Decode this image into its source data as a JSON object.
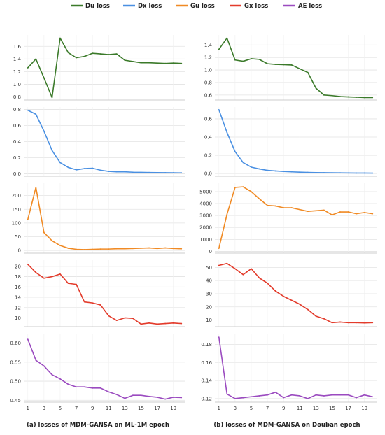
{
  "legend": [
    {
      "name": "Du loss",
      "color": "#3b7a2a"
    },
    {
      "name": "Dx loss",
      "color": "#4a90e2"
    },
    {
      "name": "Gu loss",
      "color": "#f08a24"
    },
    {
      "name": "Gx loss",
      "color": "#e33b2b"
    },
    {
      "name": "AE loss",
      "color": "#9b4bc0"
    }
  ],
  "captions": {
    "left": "(a) losses of MDM-GANSA on ML-1M epoch",
    "right": "(b) losses of MDM-GANSA on Douban epoch"
  },
  "chart_data": [
    {
      "type": "line",
      "dataset": "ML-1M",
      "series_name": "Du loss",
      "color": "#3b7a2a",
      "x": [
        1,
        2,
        3,
        4,
        5,
        6,
        7,
        8,
        9,
        10,
        11,
        12,
        13,
        14,
        15,
        16,
        17,
        18,
        19,
        20
      ],
      "y": [
        1.26,
        1.4,
        1.1,
        0.79,
        1.73,
        1.5,
        1.42,
        1.44,
        1.49,
        1.48,
        1.47,
        1.48,
        1.38,
        1.36,
        1.34,
        1.34,
        1.335,
        1.33,
        1.335,
        1.33
      ],
      "yticks": [
        0.8,
        1.0,
        1.2,
        1.4,
        1.6
      ],
      "ylim": [
        0.75,
        1.78
      ],
      "xlim": [
        0.5,
        20.5
      ],
      "grid": true
    },
    {
      "type": "line",
      "dataset": "ML-1M",
      "series_name": "Dx loss",
      "color": "#4a90e2",
      "x": [
        1,
        2,
        3,
        4,
        5,
        6,
        7,
        8,
        9,
        10,
        11,
        12,
        13,
        14,
        15,
        16,
        17,
        18,
        19,
        20
      ],
      "y": [
        0.79,
        0.74,
        0.53,
        0.29,
        0.14,
        0.08,
        0.05,
        0.065,
        0.07,
        0.045,
        0.03,
        0.025,
        0.025,
        0.02,
        0.018,
        0.016,
        0.015,
        0.014,
        0.013,
        0.012
      ],
      "yticks": [
        0.0,
        0.2,
        0.4,
        0.6,
        0.8
      ],
      "ylim": [
        -0.03,
        0.83
      ],
      "xlim": [
        0.5,
        20.5
      ],
      "grid": true
    },
    {
      "type": "line",
      "dataset": "ML-1M",
      "series_name": "Gu loss",
      "color": "#f08a24",
      "x": [
        1,
        2,
        3,
        4,
        5,
        6,
        7,
        8,
        9,
        10,
        11,
        12,
        13,
        14,
        15,
        16,
        17,
        18,
        19,
        20
      ],
      "y": [
        113,
        230,
        65,
        35,
        18,
        8,
        4,
        3,
        4,
        5,
        5,
        6,
        6,
        7,
        8,
        9,
        7,
        9,
        7,
        6
      ],
      "yticks": [
        0,
        50,
        100,
        150,
        200
      ],
      "ylim": [
        -10,
        245
      ],
      "xlim": [
        0.5,
        20.5
      ],
      "grid": true
    },
    {
      "type": "line",
      "dataset": "ML-1M",
      "series_name": "Gx loss",
      "color": "#e33b2b",
      "x": [
        1,
        2,
        3,
        4,
        5,
        6,
        7,
        8,
        9,
        10,
        11,
        12,
        13,
        14,
        15,
        16,
        17,
        18,
        19,
        20
      ],
      "y": [
        20.4,
        18.8,
        17.7,
        18.0,
        18.5,
        16.7,
        16.5,
        13.1,
        12.9,
        12.5,
        10.4,
        9.5,
        10.0,
        9.9,
        8.8,
        9.0,
        8.8,
        8.9,
        9.0,
        8.9
      ],
      "yticks": [
        10,
        12,
        14,
        16,
        18,
        20
      ],
      "ylim": [
        8.3,
        21.2
      ],
      "xlim": [
        0.5,
        20.5
      ],
      "grid": true
    },
    {
      "type": "line",
      "dataset": "ML-1M",
      "series_name": "AE loss",
      "color": "#9b4bc0",
      "x": [
        1,
        2,
        3,
        4,
        5,
        6,
        7,
        8,
        9,
        10,
        11,
        12,
        13,
        14,
        15,
        16,
        17,
        18,
        19,
        20
      ],
      "y": [
        0.61,
        0.555,
        0.54,
        0.517,
        0.506,
        0.492,
        0.485,
        0.485,
        0.482,
        0.482,
        0.472,
        0.465,
        0.455,
        0.463,
        0.463,
        0.46,
        0.458,
        0.453,
        0.458,
        0.457
      ],
      "xticks": [
        1,
        3,
        5,
        7,
        9,
        11,
        13,
        15,
        17,
        19
      ],
      "yticks": [
        0.45,
        0.5,
        0.55,
        0.6
      ],
      "ylim": [
        0.445,
        0.625
      ],
      "xlim": [
        0.5,
        20.5
      ],
      "grid": true
    },
    {
      "type": "line",
      "dataset": "Douban",
      "series_name": "Du loss",
      "color": "#3b7a2a",
      "x": [
        1,
        2,
        3,
        4,
        5,
        6,
        7,
        8,
        9,
        10,
        11,
        12,
        13,
        14,
        15,
        16,
        17,
        18,
        19,
        20
      ],
      "y": [
        1.33,
        1.51,
        1.16,
        1.14,
        1.18,
        1.17,
        1.1,
        1.09,
        1.085,
        1.08,
        1.02,
        0.96,
        0.71,
        0.6,
        0.59,
        0.575,
        0.57,
        0.565,
        0.56,
        0.56
      ],
      "yticks": [
        0.6,
        0.8,
        1.0,
        1.2,
        1.4
      ],
      "ylim": [
        0.52,
        1.56
      ],
      "xlim": [
        0.5,
        20.5
      ],
      "grid": true
    },
    {
      "type": "line",
      "dataset": "Douban",
      "series_name": "Dx loss",
      "color": "#4a90e2",
      "x": [
        1,
        2,
        3,
        4,
        5,
        6,
        7,
        8,
        9,
        10,
        11,
        12,
        13,
        14,
        15,
        16,
        17,
        18,
        19,
        20
      ],
      "y": [
        0.7,
        0.45,
        0.24,
        0.12,
        0.07,
        0.05,
        0.035,
        0.028,
        0.022,
        0.018,
        0.015,
        0.012,
        0.01,
        0.009,
        0.008,
        0.007,
        0.006,
        0.005,
        0.005,
        0.004
      ],
      "yticks": [
        0.0,
        0.2,
        0.4,
        0.6
      ],
      "ylim": [
        -0.03,
        0.73
      ],
      "xlim": [
        0.5,
        20.5
      ],
      "grid": true
    },
    {
      "type": "line",
      "dataset": "Douban",
      "series_name": "Gu loss",
      "color": "#f08a24",
      "x": [
        1,
        2,
        3,
        4,
        5,
        6,
        7,
        8,
        9,
        10,
        11,
        12,
        13,
        14,
        15,
        16,
        17,
        18,
        19,
        20
      ],
      "y": [
        250,
        3100,
        5350,
        5400,
        5000,
        4400,
        3850,
        3800,
        3650,
        3650,
        3500,
        3350,
        3400,
        3450,
        3050,
        3300,
        3300,
        3150,
        3250,
        3150
      ],
      "yticks": [
        0,
        1000,
        2000,
        3000,
        4000,
        5000
      ],
      "ylim": [
        -150,
        5700
      ],
      "xlim": [
        0.5,
        20.5
      ],
      "grid": true
    },
    {
      "type": "line",
      "dataset": "Douban",
      "series_name": "Gx loss",
      "color": "#e33b2b",
      "x": [
        1,
        2,
        3,
        4,
        5,
        6,
        7,
        8,
        9,
        10,
        11,
        12,
        13,
        14,
        15,
        16,
        17,
        18,
        19,
        20
      ],
      "y": [
        51.5,
        53,
        49,
        44.5,
        49,
        42,
        38,
        32,
        28,
        25,
        22,
        18,
        13,
        11,
        8,
        8.5,
        8,
        8,
        7.8,
        8
      ],
      "yticks": [
        10,
        20,
        30,
        40,
        50
      ],
      "ylim": [
        5,
        55.5
      ],
      "xlim": [
        0.5,
        20.5
      ],
      "grid": true
    },
    {
      "type": "line",
      "dataset": "Douban",
      "series_name": "AE loss",
      "color": "#9b4bc0",
      "x": [
        1,
        2,
        3,
        4,
        5,
        6,
        7,
        8,
        9,
        10,
        11,
        12,
        13,
        14,
        15,
        16,
        17,
        18,
        19,
        20
      ],
      "y": [
        0.188,
        0.125,
        0.12,
        0.121,
        0.122,
        0.123,
        0.124,
        0.127,
        0.121,
        0.124,
        0.123,
        0.12,
        0.124,
        0.123,
        0.124,
        0.124,
        0.124,
        0.121,
        0.124,
        0.122
      ],
      "xticks": [
        1,
        3,
        5,
        7,
        9,
        11,
        13,
        15,
        17,
        19
      ],
      "yticks": [
        0.12,
        0.14,
        0.16,
        0.18
      ],
      "ylim": [
        0.116,
        0.192
      ],
      "xlim": [
        0.5,
        20.5
      ],
      "grid": true
    }
  ]
}
